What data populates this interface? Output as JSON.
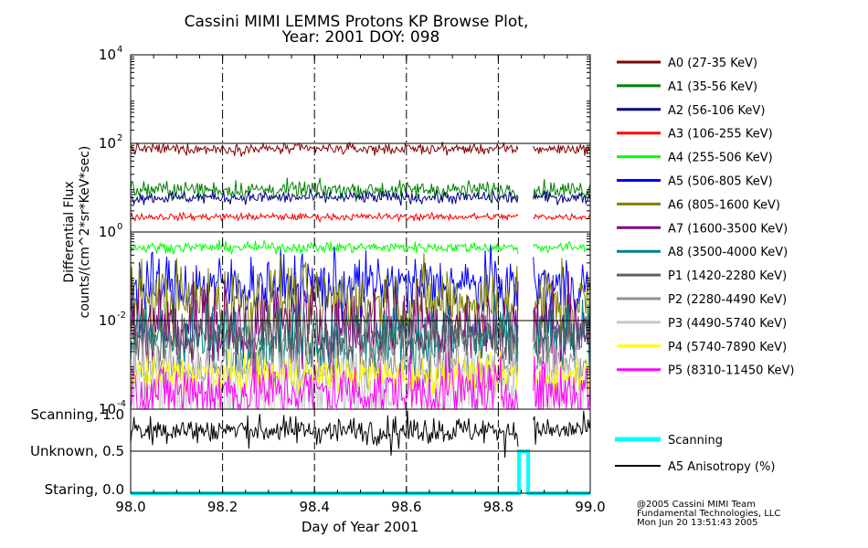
{
  "title_line1": "Cassini MIMI LEMMS Protons KP Browse Plot,",
  "title_line2": "Year: 2001 DOY: 098",
  "credits": [
    "@2005 Cassini MIMI Team",
    "Fundamental Technologies, LLC",
    "Mon Jun 20 13:51:43 2005"
  ],
  "chart_data": [
    {
      "type": "line",
      "title": "Cassini MIMI LEMMS Protons KP Browse Plot, Year: 2001 DOY: 098",
      "ylabel_line1": "Differential Flux",
      "ylabel_line2": "counts/(cm^2*sr*KeV*sec)",
      "xlim": [
        98.0,
        99.0
      ],
      "yscale": "log",
      "ylim": [
        0.0001,
        10000
      ],
      "y_ticks": [
        {
          "base": "10",
          "exp": "-4",
          "value": 0.0001
        },
        {
          "base": "10",
          "exp": "-2",
          "value": 0.01
        },
        {
          "base": "10",
          "exp": "0",
          "value": 1
        },
        {
          "base": "10",
          "exp": "2",
          "value": 100
        },
        {
          "base": "10",
          "exp": "4",
          "value": 10000
        }
      ],
      "data_gap": [
        98.845,
        98.875
      ],
      "legend_position": "right",
      "series": [
        {
          "name": "A0 (27-35 KeV)",
          "color": "#800000",
          "level": 75,
          "spread": 0.06
        },
        {
          "name": "A1 (35-56 KeV)",
          "color": "#008000",
          "level": 9,
          "spread": 0.1
        },
        {
          "name": "A2 (56-106 KeV)",
          "color": "#000080",
          "level": 6,
          "spread": 0.07
        },
        {
          "name": "A3 (106-255 KeV)",
          "color": "#ff0000",
          "level": 2.2,
          "spread": 0.04
        },
        {
          "name": "A4 (255-506 KeV)",
          "color": "#00ff00",
          "level": 0.45,
          "spread": 0.06
        },
        {
          "name": "A5 (506-805 KeV)",
          "color": "#0000ff",
          "level": 0.06,
          "spread": 0.35
        },
        {
          "name": "A6 (805-1600 KeV)",
          "color": "#808000",
          "level": 0.025,
          "spread": 0.45
        },
        {
          "name": "A7 (1600-3500 KeV)",
          "color": "#800080",
          "level": 0.008,
          "spread": 0.5
        },
        {
          "name": "A8 (3500-4000 KeV)",
          "color": "#008080",
          "level": 0.004,
          "spread": 0.4
        },
        {
          "name": "P1 (1420-2280 KeV)",
          "color": "#606060",
          "level": 0.004,
          "spread": 0.3
        },
        {
          "name": "P2 (2280-4490 KeV)",
          "color": "#909090",
          "level": 0.0009,
          "spread": 0.3
        },
        {
          "name": "P3 (4490-5740 KeV)",
          "color": "#c8c8c8",
          "level": 0.0003,
          "spread": 0.5
        },
        {
          "name": "P4 (5740-7890 KeV)",
          "color": "#ffff00",
          "level": 0.0006,
          "spread": 0.2
        },
        {
          "name": "P5 (8310-11450 KeV)",
          "color": "#ff00ff",
          "level": 0.00025,
          "spread": 0.35
        }
      ]
    },
    {
      "type": "line",
      "xlabel": "Day of Year 2001",
      "xlim": [
        98.0,
        99.0
      ],
      "x_ticks": [
        "98.0",
        "98.2",
        "98.4",
        "98.6",
        "98.8",
        "99.0"
      ],
      "ylim": [
        0,
        1.0
      ],
      "y_ticks": [
        {
          "label": "Scanning, 1.0",
          "value": 1.0
        },
        {
          "label": "Unknown, 0.5",
          "value": 0.5
        },
        {
          "label": "Staring, 0.0",
          "value": 0.0
        }
      ],
      "series": [
        {
          "name": "Scanning",
          "color": "#00ffff",
          "points": [
            [
              98.0,
              0.0
            ],
            [
              98.845,
              0.0
            ],
            [
              98.845,
              0.5
            ],
            [
              98.865,
              0.5
            ],
            [
              98.865,
              0.0
            ],
            [
              99.0,
              0.0
            ]
          ]
        },
        {
          "name": "A5 Anisotropy (%)",
          "color": "#000000",
          "level": 0.75,
          "spread": 0.08
        }
      ]
    }
  ]
}
